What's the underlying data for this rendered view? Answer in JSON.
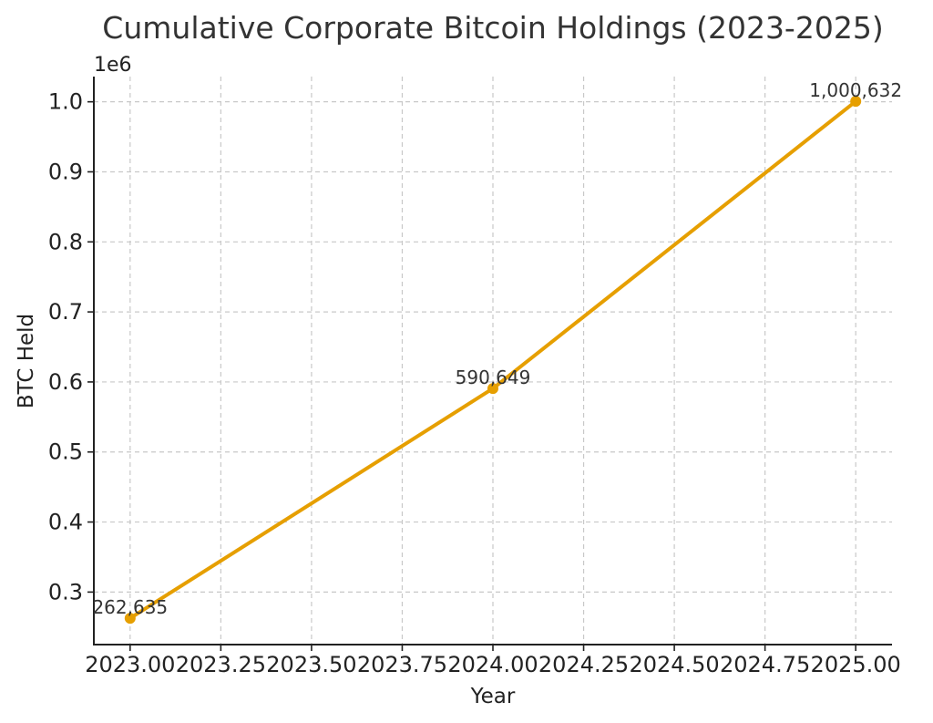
{
  "chart_data": {
    "type": "line",
    "title": "Cumulative Corporate Bitcoin Holdings (2023-2025)",
    "xlabel": "Year",
    "ylabel": "BTC Held",
    "y_offset_text": "1e6",
    "xlim": [
      2022.9,
      2025.1
    ],
    "ylim": [
      0.225,
      1.036
    ],
    "xticks": [
      2023.0,
      2023.25,
      2023.5,
      2023.75,
      2024.0,
      2024.25,
      2024.5,
      2024.75,
      2025.0
    ],
    "xtick_labels": [
      "2023.00",
      "2023.25",
      "2023.50",
      "2023.75",
      "2024.00",
      "2024.25",
      "2024.50",
      "2024.75",
      "2025.00"
    ],
    "yticks": [
      0.3,
      0.4,
      0.5,
      0.6,
      0.7,
      0.8,
      0.9,
      1.0
    ],
    "ytick_labels": [
      "0.3",
      "0.4",
      "0.5",
      "0.6",
      "0.7",
      "0.8",
      "0.9",
      "1.0"
    ],
    "grid": true,
    "series": [
      {
        "x": [
          2023,
          2024,
          2025
        ],
        "y": [
          262635,
          590649,
          1000632
        ],
        "labels": [
          "262,635",
          "590,649",
          "1,000,632"
        ],
        "color": "#E69F00"
      }
    ]
  }
}
